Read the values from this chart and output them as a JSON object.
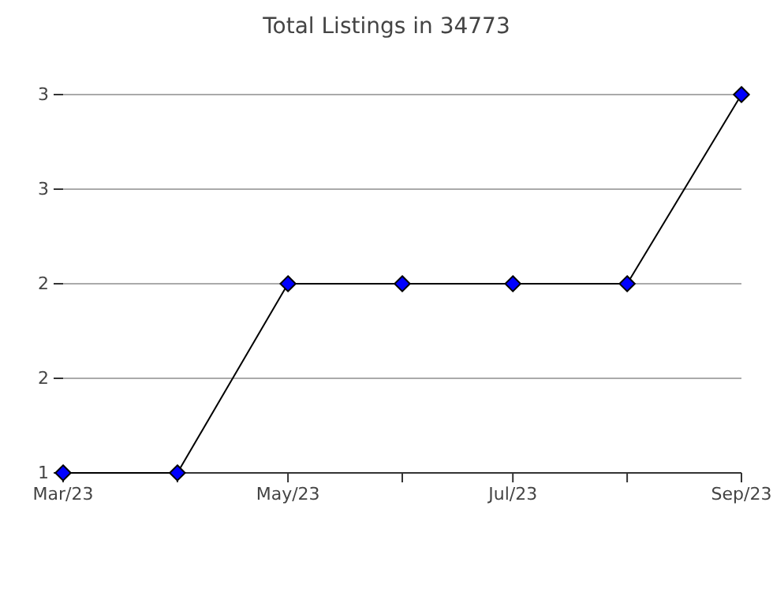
{
  "chart_data": {
    "type": "line",
    "title": "Total Listings in 34773",
    "x": [
      "2023-03",
      "2023-04",
      "2023-05",
      "2023-06",
      "2023-07",
      "2023-08",
      "2023-09"
    ],
    "series": [
      {
        "color": "#0000ff",
        "values": [
          1,
          1,
          2,
          2,
          2,
          2,
          3
        ]
      }
    ],
    "xlim": [
      "2023-03",
      "2023-09"
    ],
    "xticks": [
      {
        "value": "2023-03",
        "label": "Mar/23"
      },
      {
        "value": "2023-04",
        "label": null
      },
      {
        "value": "2023-05",
        "label": "May/23"
      },
      {
        "value": "2023-06",
        "label": null
      },
      {
        "value": "2023-07",
        "label": "Jul/23"
      },
      {
        "value": "2023-08",
        "label": null
      },
      {
        "value": "2023-09",
        "label": "Sep/23"
      }
    ],
    "ylim": [
      1,
      3
    ],
    "yticks": [
      1,
      {
        "value": 1.5,
        "label": "2"
      },
      2,
      {
        "value": 2.5,
        "label": "3"
      },
      3
    ],
    "grid": "y",
    "marker": "diamond",
    "line_style": "solid"
  }
}
